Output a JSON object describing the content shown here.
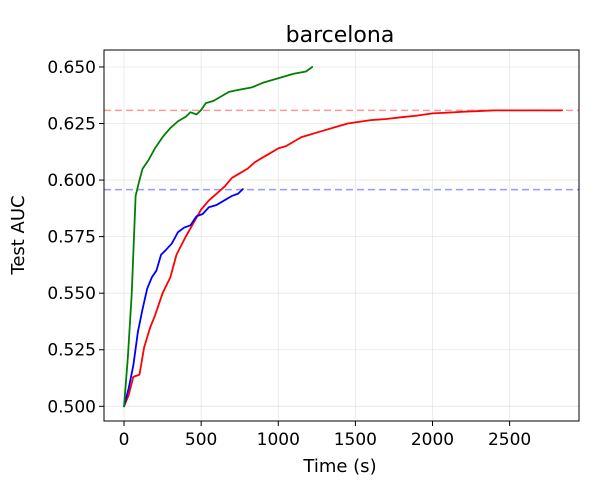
{
  "chart_data": {
    "type": "line",
    "title": "barcelona",
    "xlabel": "Time (s)",
    "ylabel": "Test AUC",
    "xlim": [
      -130,
      2950
    ],
    "ylim": [
      0.4935,
      0.6575
    ],
    "xticks": [
      0,
      500,
      1000,
      1500,
      2000,
      2500
    ],
    "yticks": [
      0.5,
      0.525,
      0.55,
      0.575,
      0.6,
      0.625,
      0.65
    ],
    "xtick_labels": [
      "0",
      "500",
      "1000",
      "1500",
      "2000",
      "2500"
    ],
    "ytick_labels": [
      "0.500",
      "0.525",
      "0.550",
      "0.575",
      "0.600",
      "0.625",
      "0.650"
    ],
    "grid": true,
    "series": [
      {
        "color": "#ff0000",
        "points": [
          [
            0,
            0.5
          ],
          [
            30,
            0.505
          ],
          [
            60,
            0.513
          ],
          [
            100,
            0.514
          ],
          [
            130,
            0.526
          ],
          [
            170,
            0.535
          ],
          [
            200,
            0.54
          ],
          [
            250,
            0.55
          ],
          [
            300,
            0.557
          ],
          [
            340,
            0.567
          ],
          [
            400,
            0.575
          ],
          [
            450,
            0.581
          ],
          [
            500,
            0.587
          ],
          [
            550,
            0.591
          ],
          [
            600,
            0.594
          ],
          [
            650,
            0.597
          ],
          [
            700,
            0.601
          ],
          [
            750,
            0.603
          ],
          [
            800,
            0.605
          ],
          [
            850,
            0.608
          ],
          [
            900,
            0.61
          ],
          [
            950,
            0.612
          ],
          [
            1000,
            0.614
          ],
          [
            1050,
            0.615
          ],
          [
            1100,
            0.617
          ],
          [
            1150,
            0.619
          ],
          [
            1200,
            0.62
          ],
          [
            1250,
            0.621
          ],
          [
            1300,
            0.622
          ],
          [
            1350,
            0.623
          ],
          [
            1400,
            0.624
          ],
          [
            1450,
            0.625
          ],
          [
            1500,
            0.6255
          ],
          [
            1600,
            0.6265
          ],
          [
            1700,
            0.627
          ],
          [
            1800,
            0.6278
          ],
          [
            1900,
            0.6285
          ],
          [
            2000,
            0.6295
          ],
          [
            2100,
            0.6298
          ],
          [
            2200,
            0.6302
          ],
          [
            2300,
            0.6305
          ],
          [
            2400,
            0.6308
          ],
          [
            2500,
            0.6308
          ],
          [
            2600,
            0.6308
          ],
          [
            2700,
            0.6308
          ],
          [
            2840,
            0.6308
          ]
        ]
      },
      {
        "color": "#0000ff",
        "points": [
          [
            0,
            0.5
          ],
          [
            30,
            0.508
          ],
          [
            60,
            0.518
          ],
          [
            90,
            0.533
          ],
          [
            120,
            0.543
          ],
          [
            150,
            0.552
          ],
          [
            180,
            0.557
          ],
          [
            210,
            0.56
          ],
          [
            240,
            0.567
          ],
          [
            270,
            0.569
          ],
          [
            310,
            0.572
          ],
          [
            350,
            0.577
          ],
          [
            390,
            0.579
          ],
          [
            430,
            0.58
          ],
          [
            470,
            0.584
          ],
          [
            510,
            0.585
          ],
          [
            550,
            0.588
          ],
          [
            600,
            0.589
          ],
          [
            650,
            0.591
          ],
          [
            700,
            0.593
          ],
          [
            740,
            0.594
          ],
          [
            770,
            0.596
          ]
        ]
      },
      {
        "color": "#008000",
        "points": [
          [
            0,
            0.5
          ],
          [
            25,
            0.522
          ],
          [
            50,
            0.55
          ],
          [
            75,
            0.593
          ],
          [
            100,
            0.6
          ],
          [
            120,
            0.605
          ],
          [
            160,
            0.609
          ],
          [
            200,
            0.614
          ],
          [
            250,
            0.619
          ],
          [
            300,
            0.623
          ],
          [
            350,
            0.626
          ],
          [
            400,
            0.628
          ],
          [
            430,
            0.63
          ],
          [
            470,
            0.629
          ],
          [
            500,
            0.631
          ],
          [
            530,
            0.634
          ],
          [
            580,
            0.635
          ],
          [
            630,
            0.637
          ],
          [
            680,
            0.639
          ],
          [
            750,
            0.64
          ],
          [
            830,
            0.641
          ],
          [
            900,
            0.643
          ],
          [
            1000,
            0.645
          ],
          [
            1100,
            0.647
          ],
          [
            1180,
            0.648
          ],
          [
            1220,
            0.65
          ]
        ]
      }
    ],
    "reference_lines": [
      {
        "y": 0.6308,
        "color": "#ff9999",
        "style": "dashed"
      },
      {
        "y": 0.5958,
        "color": "#9999ff",
        "style": "dashed"
      }
    ]
  }
}
